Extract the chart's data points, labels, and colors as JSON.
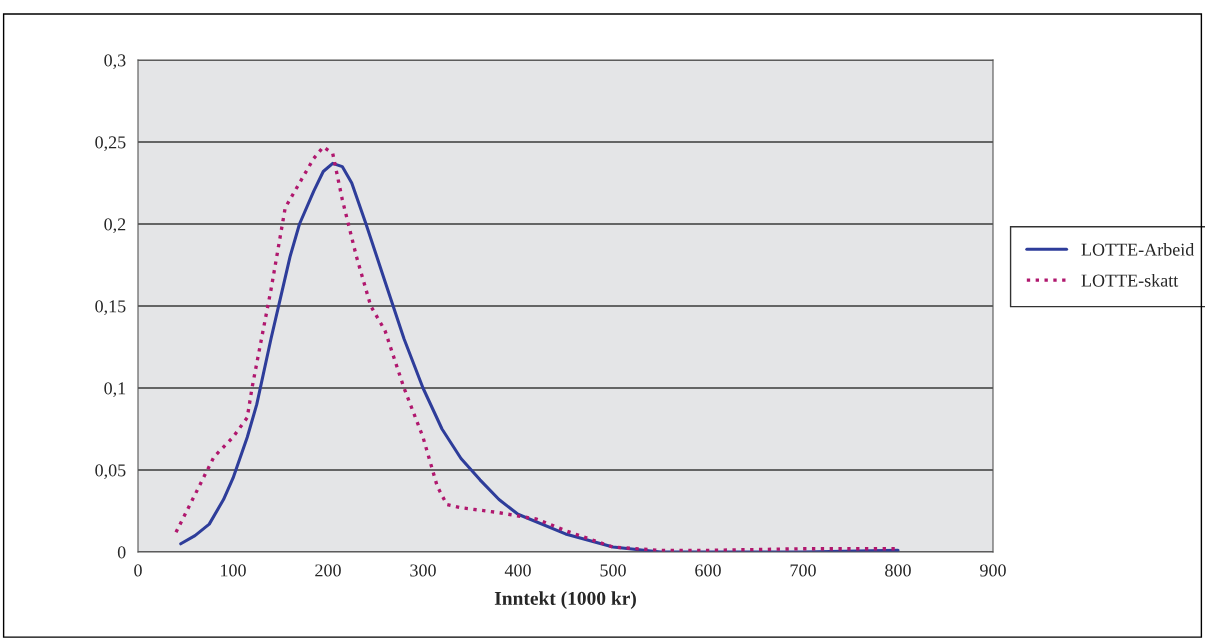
{
  "chart_data": {
    "type": "line",
    "xlabel": "Inntekt (1000 kr)",
    "xlim": [
      0,
      900
    ],
    "xticks": [
      0,
      100,
      200,
      300,
      400,
      500,
      600,
      700,
      800,
      900
    ],
    "ylim": [
      0,
      0.3
    ],
    "yticks": [
      {
        "value": 0,
        "label": "0"
      },
      {
        "value": 0.05,
        "label": "0,05"
      },
      {
        "value": 0.1,
        "label": "0,1"
      },
      {
        "value": 0.15,
        "label": "0,15"
      },
      {
        "value": 0.2,
        "label": "0,2"
      },
      {
        "value": 0.25,
        "label": "0,25"
      },
      {
        "value": 0.3,
        "label": "0,3"
      }
    ],
    "grid": "y",
    "legend": "right",
    "series": [
      {
        "name": "LOTTE-Arbeid",
        "color": "#2e3d9a",
        "line_style": "solid",
        "x": [
          45,
          60,
          75,
          90,
          100,
          115,
          125,
          140,
          150,
          160,
          170,
          185,
          195,
          205,
          215,
          225,
          240,
          260,
          280,
          300,
          320,
          340,
          360,
          380,
          400,
          450,
          500,
          550,
          600,
          700,
          800
        ],
        "values": [
          0.005,
          0.01,
          0.017,
          0.032,
          0.045,
          0.07,
          0.09,
          0.13,
          0.155,
          0.18,
          0.2,
          0.22,
          0.232,
          0.237,
          0.235,
          0.225,
          0.2,
          0.165,
          0.13,
          0.1,
          0.075,
          0.057,
          0.044,
          0.032,
          0.023,
          0.011,
          0.003,
          0,
          0,
          0,
          0.001
        ]
      },
      {
        "name": "LOTTE-skatt",
        "color": "#b0176e",
        "line_style": "dotted",
        "x": [
          40,
          60,
          80,
          100,
          115,
          120,
          130,
          140,
          155,
          170,
          185,
          195,
          205,
          215,
          230,
          245,
          260,
          280,
          300,
          315,
          325,
          340,
          380,
          420,
          450,
          500,
          550,
          600,
          700,
          800
        ],
        "values": [
          0.012,
          0.035,
          0.058,
          0.07,
          0.082,
          0.1,
          0.13,
          0.16,
          0.21,
          0.225,
          0.24,
          0.247,
          0.243,
          0.215,
          0.18,
          0.15,
          0.135,
          0.1,
          0.07,
          0.04,
          0.029,
          0.027,
          0.024,
          0.02,
          0.013,
          0.003,
          0.001,
          0.001,
          0.002,
          0.002
        ]
      }
    ]
  }
}
